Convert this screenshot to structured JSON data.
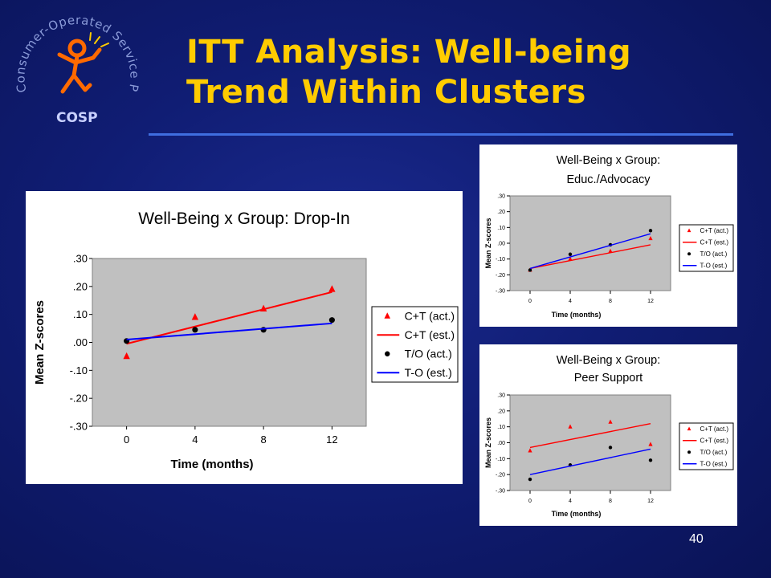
{
  "slide": {
    "title_line1": "ITT Analysis: Well-being",
    "title_line2": "Trend Within Clusters",
    "number": "40",
    "colors": {
      "background": "#101d74",
      "title": "#ffcc00",
      "rule": "#3f6ee0"
    }
  },
  "logo": {
    "name": "Consumer-Operated Service Program",
    "abbrev": "COSP",
    "icon": "stick-figure-icon"
  },
  "chart_data": [
    {
      "type": "line",
      "title": "Well-Being x Group: Drop-In",
      "subtitle": "",
      "xlabel": "Time (months)",
      "ylabel": "Mean Z-scores",
      "x": [
        0,
        4,
        8,
        12
      ],
      "xlim": [
        -2,
        14
      ],
      "ylim": [
        -0.3,
        0.3
      ],
      "y_ticks": [
        ".30",
        ".20",
        ".10",
        ".00",
        "-.10",
        "-.20",
        "-.30"
      ],
      "x_ticks": [
        "0",
        "4",
        "8",
        "12"
      ],
      "grid": false,
      "legend": "right",
      "series": [
        {
          "name": "C+T (act.)",
          "kind": "marker",
          "marker": "triangle",
          "color": "#ff0000",
          "values": [
            -0.05,
            0.09,
            0.12,
            0.19
          ]
        },
        {
          "name": "C+T (est.)",
          "kind": "line",
          "color": "#ff0000",
          "values": [
            -0.005,
            0.06,
            0.12,
            0.18
          ]
        },
        {
          "name": "T/O (act.)",
          "kind": "marker",
          "marker": "circle",
          "color": "#000000",
          "values": [
            0.005,
            0.045,
            0.045,
            0.08
          ]
        },
        {
          "name": "T-O (est.)",
          "kind": "line",
          "color": "#0000ff",
          "values": [
            0.01,
            0.03,
            0.05,
            0.068
          ]
        }
      ]
    },
    {
      "type": "line",
      "title": "Well-Being x Group:",
      "subtitle": "Educ./Advocacy",
      "xlabel": "Time (months)",
      "ylabel": "Mean Z-scores",
      "x": [
        0,
        4,
        8,
        12
      ],
      "xlim": [
        -2,
        14
      ],
      "ylim": [
        -0.3,
        0.3
      ],
      "y_ticks": [
        ".30",
        ".20",
        ".10",
        ".00",
        "-.10",
        "-.20",
        "-.30"
      ],
      "x_ticks": [
        "0",
        "4",
        "8",
        "12"
      ],
      "grid": false,
      "legend": "right",
      "series": [
        {
          "name": "C+T (act.)",
          "kind": "marker",
          "marker": "triangle",
          "color": "#ff0000",
          "values": [
            -0.17,
            -0.1,
            -0.05,
            0.03
          ]
        },
        {
          "name": "C+T (est.)",
          "kind": "line",
          "color": "#ff0000",
          "values": [
            -0.16,
            -0.11,
            -0.06,
            -0.01
          ]
        },
        {
          "name": "T/O (act.)",
          "kind": "marker",
          "marker": "circle",
          "color": "#000000",
          "values": [
            -0.17,
            -0.07,
            -0.01,
            0.08
          ]
        },
        {
          "name": "T-O (est.)",
          "kind": "line",
          "color": "#0000ff",
          "values": [
            -0.16,
            -0.09,
            -0.02,
            0.06
          ]
        }
      ]
    },
    {
      "type": "line",
      "title": "Well-Being x Group:",
      "subtitle": "Peer Support",
      "xlabel": "Time (months)",
      "ylabel": "Mean Z-scores",
      "x": [
        0,
        4,
        8,
        12
      ],
      "xlim": [
        -2,
        14
      ],
      "ylim": [
        -0.3,
        0.3
      ],
      "y_ticks": [
        ".30",
        ".20",
        ".10",
        ".00",
        "-.10",
        "-.20",
        "-.30"
      ],
      "x_ticks": [
        "0",
        "4",
        "8",
        "12"
      ],
      "grid": false,
      "legend": "right",
      "series": [
        {
          "name": "C+T (act.)",
          "kind": "marker",
          "marker": "triangle",
          "color": "#ff0000",
          "values": [
            -0.05,
            0.1,
            0.13,
            -0.01
          ]
        },
        {
          "name": "C+T (est.)",
          "kind": "line",
          "color": "#ff0000",
          "values": [
            -0.03,
            0.02,
            0.07,
            0.12
          ]
        },
        {
          "name": "T/O (act.)",
          "kind": "marker",
          "marker": "circle",
          "color": "#000000",
          "values": [
            -0.23,
            -0.14,
            -0.03,
            -0.11
          ]
        },
        {
          "name": "T-O (est.)",
          "kind": "line",
          "color": "#0000ff",
          "values": [
            -0.2,
            -0.15,
            -0.09,
            -0.04
          ]
        }
      ]
    }
  ]
}
